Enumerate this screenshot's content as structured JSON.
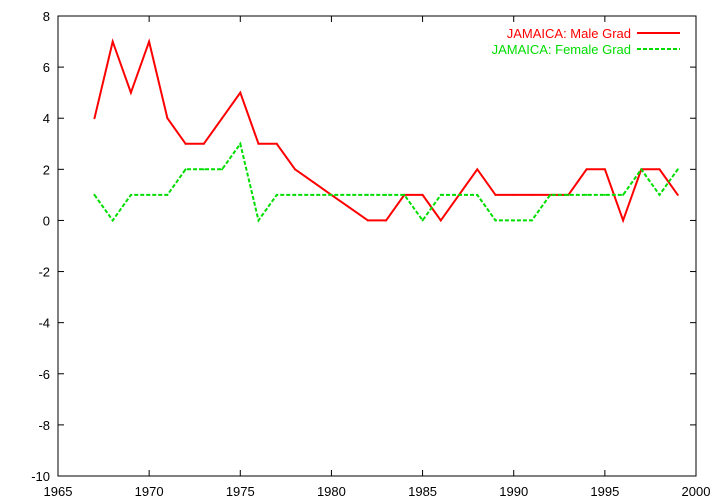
{
  "chart_data": {
    "type": "line",
    "title": "",
    "xlabel": "",
    "ylabel": "",
    "xlim": [
      1965,
      2000
    ],
    "ylim": [
      -10,
      8
    ],
    "xticks": [
      1965,
      1970,
      1975,
      1980,
      1985,
      1990,
      1995,
      2000
    ],
    "yticks": [
      -10,
      -8,
      -6,
      -4,
      -2,
      0,
      2,
      4,
      6,
      8
    ],
    "grid": false,
    "legend_position": "top-right",
    "x": [
      1967,
      1968,
      1969,
      1970,
      1971,
      1972,
      1973,
      1974,
      1975,
      1976,
      1977,
      1978,
      1979,
      1980,
      1981,
      1982,
      1983,
      1984,
      1985,
      1986,
      1987,
      1988,
      1989,
      1990,
      1991,
      1992,
      1993,
      1994,
      1995,
      1996,
      1997,
      1998,
      1999
    ],
    "series": [
      {
        "name": "JAMAICA: Male Grad",
        "color": "#ff0000",
        "dash": "solid",
        "values": [
          4,
          7,
          5,
          7,
          4,
          3,
          3,
          4,
          5,
          3,
          3,
          2,
          1.5,
          1,
          0.5,
          0,
          0,
          1,
          1,
          0,
          1,
          2,
          1,
          1,
          1,
          1,
          1,
          2,
          2,
          0,
          2,
          2,
          1
        ]
      },
      {
        "name": "JAMAICA: Female Grad",
        "color": "#00dd00",
        "dash": "dashed",
        "values": [
          1,
          0,
          1,
          1,
          1,
          2,
          2,
          2,
          3,
          0,
          1,
          1,
          1,
          1,
          1,
          1,
          1,
          1,
          0,
          1,
          1,
          1,
          0,
          0,
          0,
          1,
          1,
          1,
          1,
          1,
          2,
          1,
          2
        ]
      }
    ]
  }
}
